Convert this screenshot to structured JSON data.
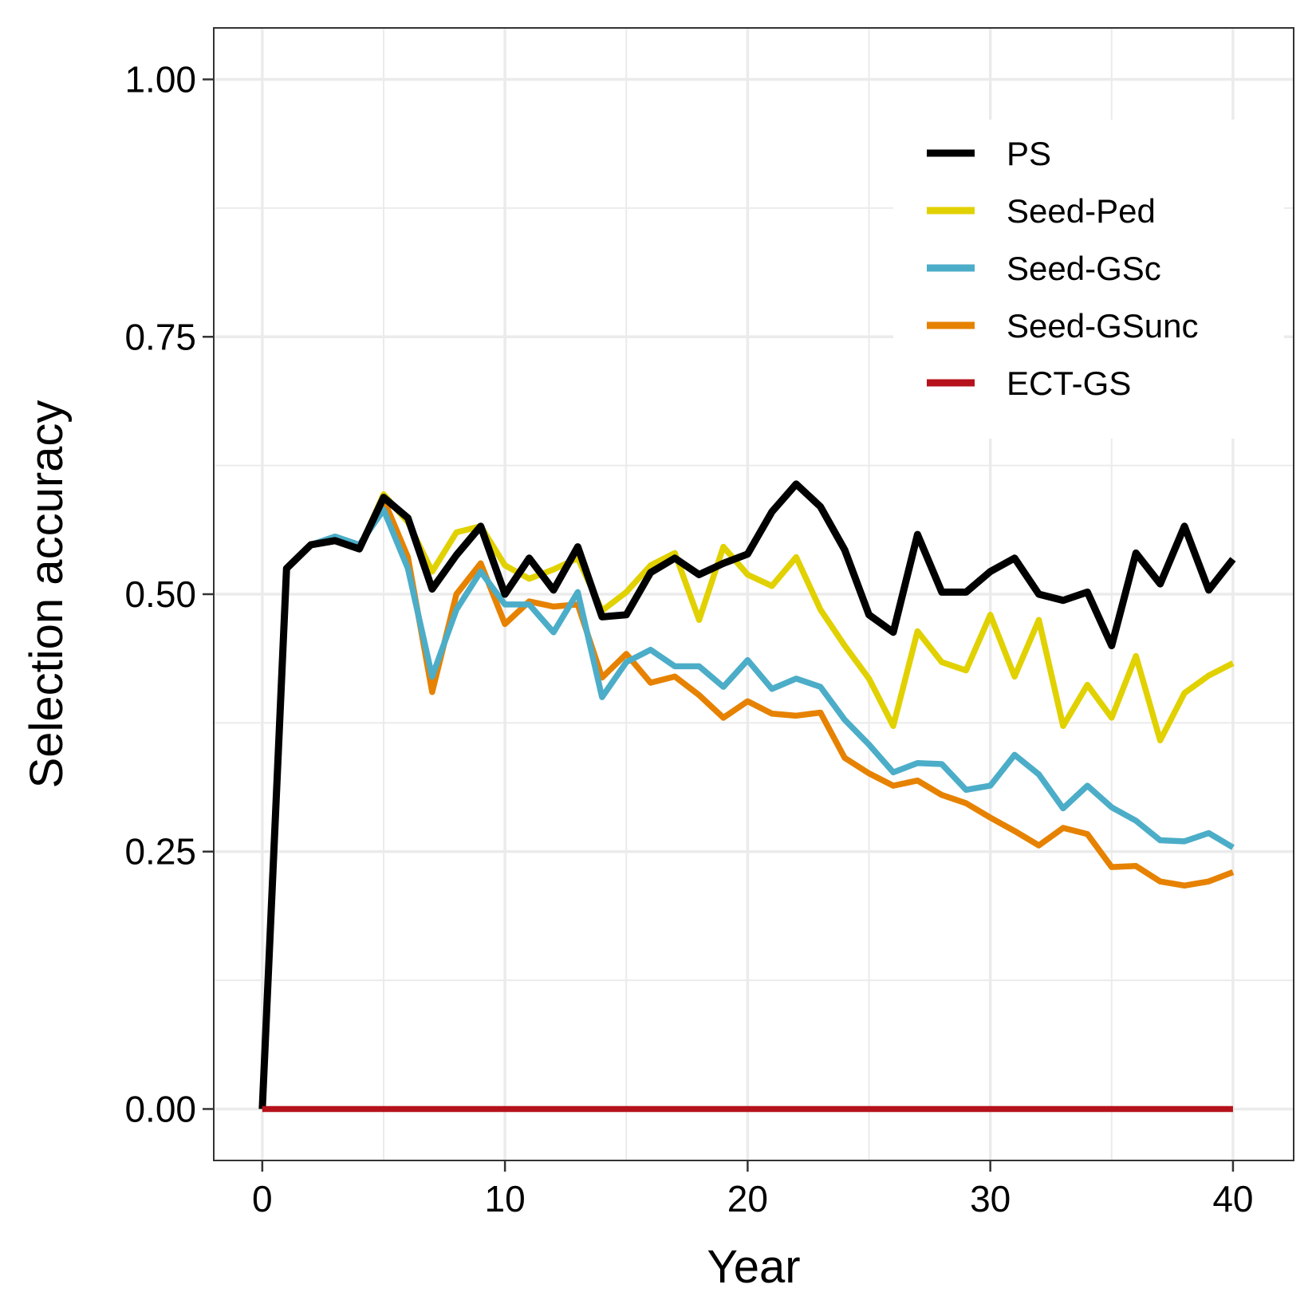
{
  "chart_data": {
    "type": "line",
    "xlabel": "Year",
    "ylabel": "Selection accuracy",
    "xlim": [
      -2,
      42.5
    ],
    "ylim": [
      -0.05,
      1.05
    ],
    "x_ticks": [
      0,
      10,
      20,
      30,
      40
    ],
    "x_tick_labels": [
      "0",
      "10",
      "20",
      "30",
      "40"
    ],
    "y_ticks": [
      0,
      0.25,
      0.5,
      0.75,
      1.0
    ],
    "y_tick_labels": [
      "0.00",
      "0.25",
      "0.50",
      "0.75",
      "1.00"
    ],
    "grid": true,
    "legend_position": "top-right",
    "x": [
      0,
      1,
      2,
      3,
      4,
      5,
      6,
      7,
      8,
      9,
      10,
      11,
      12,
      13,
      14,
      15,
      16,
      17,
      18,
      19,
      20,
      21,
      22,
      23,
      24,
      25,
      26,
      27,
      28,
      29,
      30,
      31,
      32,
      33,
      34,
      35,
      36,
      37,
      38,
      39,
      40
    ],
    "series": [
      {
        "name": "PS",
        "color": "#000000",
        "values": [
          0.0,
          0.525,
          0.548,
          0.552,
          0.544,
          0.594,
          0.574,
          0.505,
          0.538,
          0.566,
          0.5,
          0.535,
          0.504,
          0.546,
          0.478,
          0.48,
          0.521,
          0.535,
          0.519,
          0.53,
          0.539,
          0.58,
          0.607,
          0.585,
          0.543,
          0.48,
          0.463,
          0.558,
          0.502,
          0.502,
          0.522,
          0.535,
          0.5,
          0.494,
          0.502,
          0.45,
          0.54,
          0.51,
          0.566,
          0.504,
          0.534
        ]
      },
      {
        "name": "Seed-Ped",
        "color": "#E1D100",
        "values": [
          0.0,
          0.525,
          0.548,
          0.552,
          0.544,
          0.597,
          0.57,
          0.522,
          0.56,
          0.566,
          0.528,
          0.515,
          0.524,
          0.535,
          0.484,
          0.502,
          0.528,
          0.54,
          0.475,
          0.546,
          0.519,
          0.508,
          0.536,
          0.485,
          0.45,
          0.418,
          0.372,
          0.464,
          0.434,
          0.426,
          0.48,
          0.42,
          0.475,
          0.372,
          0.412,
          0.38,
          0.44,
          0.358,
          0.404,
          0.421,
          0.433
        ]
      },
      {
        "name": "Seed-GSc",
        "color": "#4CADC8",
        "values": [
          0.0,
          0.525,
          0.548,
          0.556,
          0.548,
          0.582,
          0.525,
          0.42,
          0.485,
          0.522,
          0.49,
          0.49,
          0.463,
          0.502,
          0.4,
          0.434,
          0.446,
          0.43,
          0.43,
          0.41,
          0.436,
          0.408,
          0.418,
          0.41,
          0.378,
          0.354,
          0.327,
          0.336,
          0.335,
          0.31,
          0.314,
          0.344,
          0.325,
          0.292,
          0.314,
          0.293,
          0.28,
          0.261,
          0.26,
          0.268,
          0.254
        ]
      },
      {
        "name": "Seed-GSunc",
        "color": "#E68200",
        "values": [
          0.0,
          0.525,
          0.548,
          0.552,
          0.544,
          0.592,
          0.536,
          0.405,
          0.5,
          0.53,
          0.471,
          0.493,
          0.488,
          0.49,
          0.419,
          0.442,
          0.414,
          0.42,
          0.402,
          0.38,
          0.396,
          0.384,
          0.382,
          0.385,
          0.341,
          0.326,
          0.314,
          0.319,
          0.305,
          0.297,
          0.283,
          0.27,
          0.256,
          0.273,
          0.267,
          0.235,
          0.236,
          0.221,
          0.217,
          0.221,
          0.23
        ]
      },
      {
        "name": "ECT-GS",
        "color": "#B5121B",
        "values": [
          0,
          0,
          0,
          0,
          0,
          0,
          0,
          0,
          0,
          0,
          0,
          0,
          0,
          0,
          0,
          0,
          0,
          0,
          0,
          0,
          0,
          0,
          0,
          0,
          0,
          0,
          0,
          0,
          0,
          0,
          0,
          0,
          0,
          0,
          0,
          0,
          0,
          0,
          0,
          0,
          0
        ]
      }
    ]
  }
}
